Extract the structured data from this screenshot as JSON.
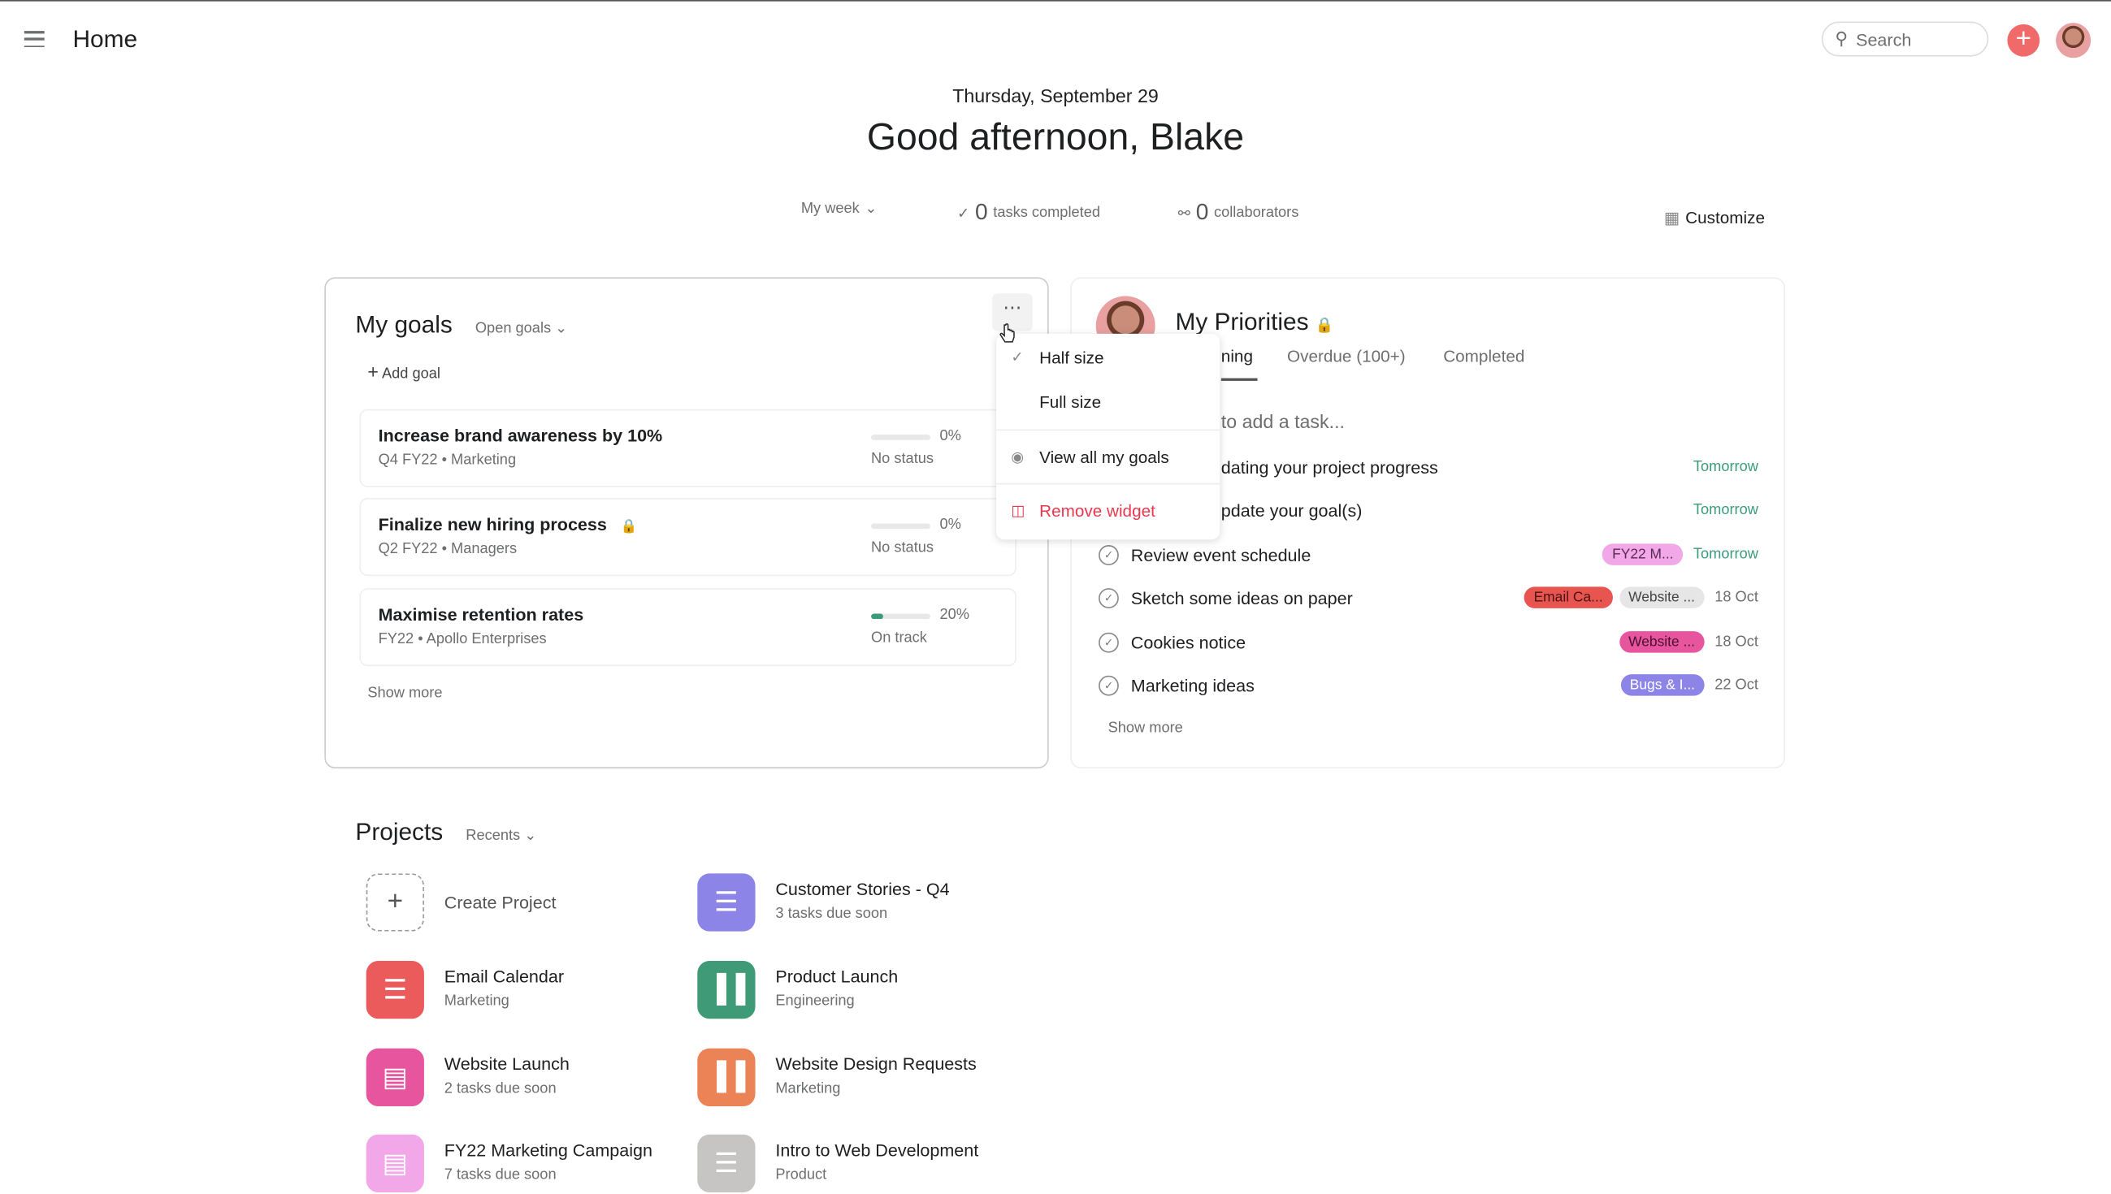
{
  "header": {
    "title": "Home",
    "search_placeholder": "Search"
  },
  "greeting": {
    "date": "Thursday, September 29",
    "text": "Good afternoon, Blake"
  },
  "stats": {
    "period": "My week",
    "tasks_count": "0",
    "tasks_label": "tasks completed",
    "collab_count": "0",
    "collab_label": "collaborators",
    "customize": "Customize"
  },
  "goals": {
    "title": "My goals",
    "filter": "Open goals",
    "add": "Add goal",
    "show_more": "Show more",
    "items": [
      {
        "title": "Increase brand awareness by 10%",
        "period": "Q4 FY22",
        "team": "Marketing",
        "progress": 0,
        "pct": "0%",
        "status": "No status",
        "locked": false
      },
      {
        "title": "Finalize new hiring process",
        "period": "Q2 FY22",
        "team": "Managers",
        "progress": 0,
        "pct": "0%",
        "status": "No status",
        "locked": true
      },
      {
        "title": "Maximise retention rates",
        "period": "FY22",
        "team": "Apollo Enterprises",
        "progress": 20,
        "pct": "20%",
        "status": "On track",
        "locked": false
      }
    ]
  },
  "menu": {
    "items": [
      {
        "label": "Half size",
        "checked": true
      },
      {
        "label": "Full size"
      },
      {
        "label": "View all my goals"
      },
      {
        "label": "Remove widget",
        "color": "#e8384f"
      }
    ]
  },
  "priorities": {
    "title": "My Priorities",
    "tabs": [
      {
        "label": "ning",
        "active": true
      },
      {
        "label": "Overdue (100+)"
      },
      {
        "label": "Completed"
      }
    ],
    "add_task": "to add a task...",
    "tasks": [
      {
        "name": "dating your project progress",
        "tags": [],
        "due": "Tomorrow"
      },
      {
        "name": "pdate your goal(s)",
        "tags": [],
        "due": "Tomorrow"
      },
      {
        "name": "Review event schedule",
        "tags": [
          {
            "label": "FY22 M...",
            "bg": "#f1a7e8",
            "fg": "#5a2a55"
          }
        ],
        "due": "Tomorrow"
      },
      {
        "name": "Sketch some ideas on paper",
        "tags": [
          {
            "label": "Email Ca...",
            "bg": "#e8544f",
            "fg": "#4a1513"
          },
          {
            "label": "Website ...",
            "bg": "#e6e6e6",
            "fg": "#444"
          }
        ],
        "due": "18 Oct"
      },
      {
        "name": "Cookies notice",
        "tags": [
          {
            "label": "Website ...",
            "bg": "#e8559f",
            "fg": "#4a1030"
          }
        ],
        "due": "18 Oct"
      },
      {
        "name": "Marketing ideas",
        "tags": [
          {
            "label": "Bugs & I...",
            "bg": "#8d84e8",
            "fg": "#fff"
          }
        ],
        "due": "22 Oct"
      }
    ],
    "show_more": "Show more"
  },
  "projects": {
    "title": "Projects",
    "filter": "Recents",
    "items": [
      {
        "name": "Create Project",
        "sub": "",
        "color": "",
        "icon": "plus-icon"
      },
      {
        "name": "Customer Stories - Q4",
        "sub": "3 tasks due soon",
        "color": "#8d84e8",
        "icon": "list-icon"
      },
      {
        "name": "Email Calendar",
        "sub": "Marketing",
        "color": "#ec5b5b",
        "icon": "list-icon"
      },
      {
        "name": "Product Launch",
        "sub": "Engineering",
        "color": "#3f9a78",
        "icon": "board-icon"
      },
      {
        "name": "Website Launch",
        "sub": "2 tasks due soon",
        "color": "#e8559f",
        "icon": "calendar-icon"
      },
      {
        "name": "Website Design Requests",
        "sub": "Marketing",
        "color": "#ec8356",
        "icon": "board-icon"
      },
      {
        "name": "FY22 Marketing Campaign",
        "sub": "7 tasks due soon",
        "color": "#f1a7e8",
        "icon": "calendar-icon"
      },
      {
        "name": "Intro to Web Development",
        "sub": "Product",
        "color": "#c7c4c4",
        "icon": "list-icon"
      }
    ]
  }
}
